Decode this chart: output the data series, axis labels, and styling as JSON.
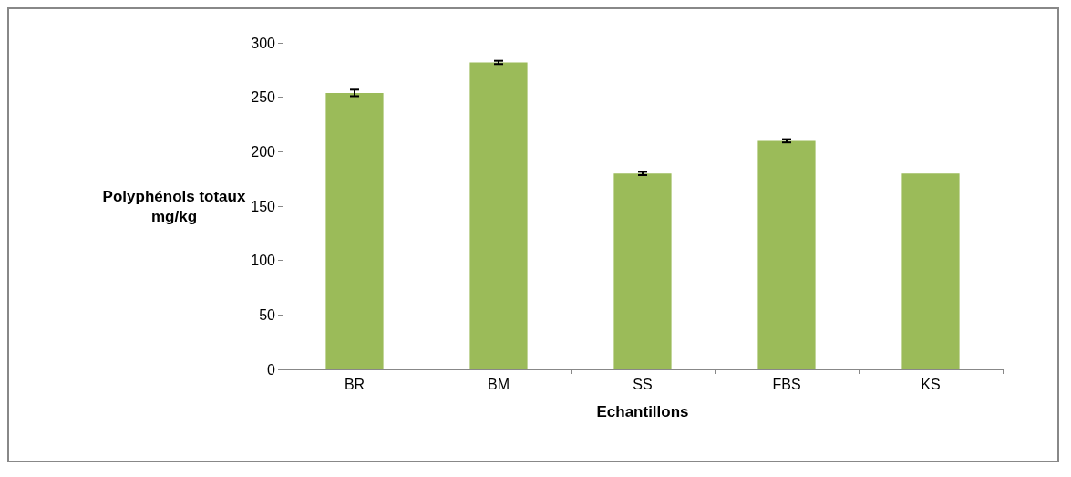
{
  "chart_data": {
    "type": "bar",
    "xlabel": "Echantillons",
    "ylabel": "Polyphénols totaux\nmg/kg",
    "categories": [
      "BR",
      "BM",
      "SS",
      "FBS",
      "KS"
    ],
    "values": [
      254,
      282,
      180,
      210,
      180
    ],
    "errors": [
      3,
      1.5,
      1.5,
      1.5,
      null
    ],
    "color": "#9bbb59",
    "ylim": [
      0,
      300
    ],
    "yticks": [
      0,
      50,
      100,
      150,
      200,
      250,
      300
    ],
    "grid": false
  }
}
